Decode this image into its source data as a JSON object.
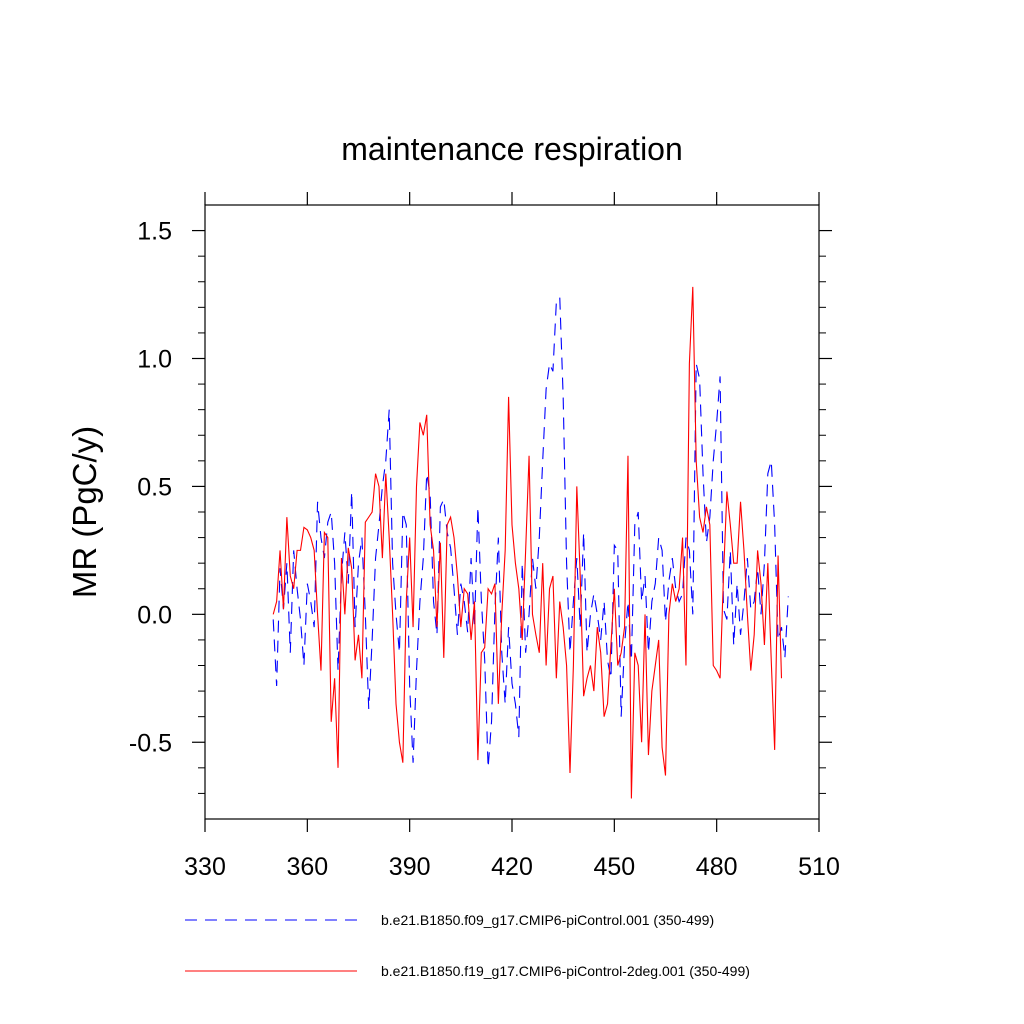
{
  "chart_data": {
    "type": "line",
    "title": "maintenance respiration",
    "xlabel": "",
    "ylabel": "MR  (PgC/y)",
    "xlim": [
      330,
      510
    ],
    "ylim": [
      -0.8,
      1.6
    ],
    "x_ticks": [
      330,
      360,
      390,
      420,
      450,
      480,
      510
    ],
    "x_tick_labels": [
      "330",
      "360",
      "390",
      "420",
      "450",
      "480",
      "510"
    ],
    "y_ticks": [
      -0.5,
      0.0,
      0.5,
      1.0,
      1.5
    ],
    "y_tick_labels": [
      "-0.5",
      "0.0",
      "0.5",
      "1.0",
      "1.5"
    ],
    "x_start": 350,
    "series": [
      {
        "name": "b.e21.B1850.f09_g17.CMIP6-piControl.001 (350-499)",
        "color": "#0000ff",
        "dash": "dashed",
        "values": [
          -0.02,
          -0.28,
          0.18,
          0.02,
          0.2,
          -0.15,
          0.25,
          0.1,
          -0.02,
          -0.2,
          0.12,
          0.05,
          -0.05,
          0.44,
          0.3,
          0.22,
          0.36,
          0.4,
          0.2,
          -0.22,
          0.15,
          0.32,
          0.12,
          0.48,
          -0.05,
          0.2,
          0.3,
          0.0,
          -0.37,
          -0.1,
          0.22,
          0.35,
          0.5,
          0.6,
          0.8,
          0.2,
          0.0,
          -0.15,
          0.4,
          0.35,
          -0.28,
          -0.58,
          -0.22,
          0.05,
          0.22,
          0.55,
          0.47,
          0.05,
          -0.08,
          0.42,
          0.45,
          0.32,
          0.26,
          0.1,
          -0.08,
          0.12,
          0.05,
          -0.07,
          0.22,
          -0.05,
          0.42,
          0.06,
          -0.18,
          -0.6,
          -0.42,
          0.02,
          0.3,
          -0.15,
          -0.35,
          -0.05,
          -0.27,
          -0.35,
          -0.48,
          0.2,
          -0.15,
          0.0,
          0.22,
          0.1,
          0.3,
          0.6,
          0.88,
          0.98,
          0.95,
          1.22,
          1.24,
          0.85,
          0.2,
          -0.15,
          0.05,
          0.22,
          -0.05,
          0.32,
          -0.15,
          0.0,
          0.08,
          0.0,
          -0.1,
          0.05,
          -0.18,
          -0.25,
          0.27,
          0.25,
          -0.4,
          -0.12,
          0.05,
          -0.18,
          0.35,
          0.4,
          0.05,
          0.15,
          -0.15,
          0.05,
          0.12,
          0.3,
          0.25,
          -0.03,
          0.13,
          0.22,
          0.1,
          0.05,
          0.08,
          0.3,
          0.25,
          0.0,
          0.98,
          0.92,
          0.55,
          0.28,
          0.38,
          0.6,
          0.75,
          0.93,
          0.02,
          -0.02,
          0.25,
          -0.12,
          0.12,
          -0.08,
          0.05,
          0.22,
          0.02,
          0.05,
          0.18,
          0.0,
          0.2,
          0.55,
          0.6,
          0.35,
          -0.1,
          -0.05,
          -0.17,
          0.07
        ]
      },
      {
        "name": "b.e21.B1850.f19_g17.CMIP6-piControl-2deg.001 (350-499)",
        "color": "#ff0000",
        "dash": "solid",
        "values": [
          0.0,
          0.05,
          0.25,
          0.02,
          0.38,
          0.15,
          0.1,
          0.25,
          0.25,
          0.34,
          0.33,
          0.3,
          0.25,
          0.0,
          -0.22,
          0.32,
          0.3,
          -0.42,
          -0.25,
          -0.6,
          0.22,
          0.0,
          0.26,
          0.18,
          -0.18,
          -0.08,
          -0.25,
          0.36,
          0.38,
          0.4,
          0.55,
          0.5,
          0.22,
          0.55,
          0.3,
          0.0,
          -0.35,
          -0.5,
          -0.58,
          0.05,
          0.3,
          -0.05,
          0.5,
          0.75,
          0.7,
          0.78,
          0.35,
          0.25,
          -0.05,
          0.28,
          -0.17,
          0.35,
          0.38,
          0.3,
          0.15,
          -0.05,
          0.1,
          0.08,
          -0.1,
          0.05,
          -0.57,
          -0.15,
          -0.13,
          0.1,
          0.08,
          0.12,
          -0.35,
          0.0,
          0.25,
          0.85,
          0.35,
          0.2,
          0.1,
          -0.1,
          0.25,
          0.62,
          0.0,
          -0.08,
          -0.15,
          0.2,
          -0.2,
          0.1,
          0.15,
          -0.25,
          0.05,
          -0.05,
          -0.2,
          -0.62,
          -0.2,
          0.5,
          0.15,
          -0.32,
          -0.25,
          -0.2,
          -0.3,
          -0.05,
          -0.15,
          -0.4,
          -0.35,
          -0.12,
          0.1,
          -0.2,
          -0.15,
          -0.05,
          0.62,
          -0.72,
          -0.15,
          -0.2,
          -0.5,
          0.0,
          -0.55,
          -0.3,
          -0.2,
          -0.1,
          -0.52,
          -0.63,
          0.0,
          0.12,
          0.05,
          0.1,
          0.3,
          -0.2,
          0.98,
          1.28,
          0.6,
          0.38,
          0.32,
          0.42,
          0.35,
          -0.2,
          -0.22,
          -0.25,
          0.15,
          0.48,
          0.35,
          0.2,
          0.2,
          0.44,
          0.25,
          0.0,
          -0.22,
          -0.08,
          0.25,
          0.12,
          -0.12,
          0.2,
          -0.18,
          -0.53,
          0.23,
          -0.25
        ]
      }
    ],
    "legend_position": "bottom"
  }
}
